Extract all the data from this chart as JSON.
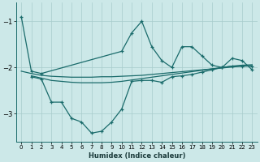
{
  "xlabel": "Humidex (Indice chaleur)",
  "bg_color": "#cce8e8",
  "line_color": "#1a6b6b",
  "grid_color": "#a8cccc",
  "xlim": [
    -0.5,
    23.5
  ],
  "ylim": [
    -3.6,
    -0.6
  ],
  "yticks": [
    -3,
    -2,
    -1
  ],
  "xticks": [
    0,
    1,
    2,
    3,
    4,
    5,
    6,
    7,
    8,
    9,
    10,
    11,
    12,
    13,
    14,
    15,
    16,
    17,
    18,
    19,
    20,
    21,
    22,
    23
  ],
  "line1_x": [
    0,
    1,
    2,
    10,
    11,
    12,
    13,
    14,
    15,
    16,
    17,
    18,
    19,
    20,
    21,
    22,
    23
  ],
  "line1_y": [
    -0.9,
    -2.08,
    -2.13,
    -1.65,
    -1.25,
    -1.0,
    -1.55,
    -1.85,
    -2.0,
    -1.55,
    -1.55,
    -1.75,
    -1.95,
    -2.0,
    -1.8,
    -1.85,
    -2.05
  ],
  "line2_x": [
    0,
    1,
    2,
    3,
    4,
    5,
    6,
    7,
    8,
    9,
    10,
    11,
    12,
    13,
    14,
    15,
    16,
    17,
    18,
    19,
    20,
    21,
    22,
    23
  ],
  "line2_y": [
    -2.08,
    -2.13,
    -2.17,
    -2.19,
    -2.2,
    -2.21,
    -2.21,
    -2.21,
    -2.2,
    -2.2,
    -2.19,
    -2.18,
    -2.17,
    -2.15,
    -2.13,
    -2.11,
    -2.09,
    -2.07,
    -2.05,
    -2.03,
    -2.01,
    -1.99,
    -1.97,
    -1.96
  ],
  "line3_x": [
    1,
    2,
    3,
    4,
    5,
    6,
    7,
    8,
    9,
    10,
    11,
    12,
    13,
    14,
    15,
    16,
    17,
    18,
    19,
    20,
    21,
    22,
    23
  ],
  "line3_y": [
    -2.2,
    -2.25,
    -2.75,
    -2.75,
    -3.1,
    -3.18,
    -3.42,
    -3.38,
    -3.18,
    -2.9,
    -2.3,
    -2.28,
    -2.28,
    -2.32,
    -2.2,
    -2.18,
    -2.15,
    -2.1,
    -2.05,
    -2.0,
    -1.97,
    -1.97,
    -1.97
  ],
  "line4_x": [
    1,
    2,
    3,
    4,
    5,
    6,
    7,
    8,
    9,
    10,
    11,
    12,
    13,
    14,
    15,
    16,
    17,
    18,
    19,
    20,
    21,
    22,
    23
  ],
  "line4_y": [
    -2.18,
    -2.23,
    -2.28,
    -2.3,
    -2.32,
    -2.33,
    -2.33,
    -2.33,
    -2.32,
    -2.3,
    -2.27,
    -2.24,
    -2.21,
    -2.18,
    -2.15,
    -2.12,
    -2.09,
    -2.06,
    -2.03,
    -2.0,
    -1.97,
    -1.95,
    -1.94
  ]
}
